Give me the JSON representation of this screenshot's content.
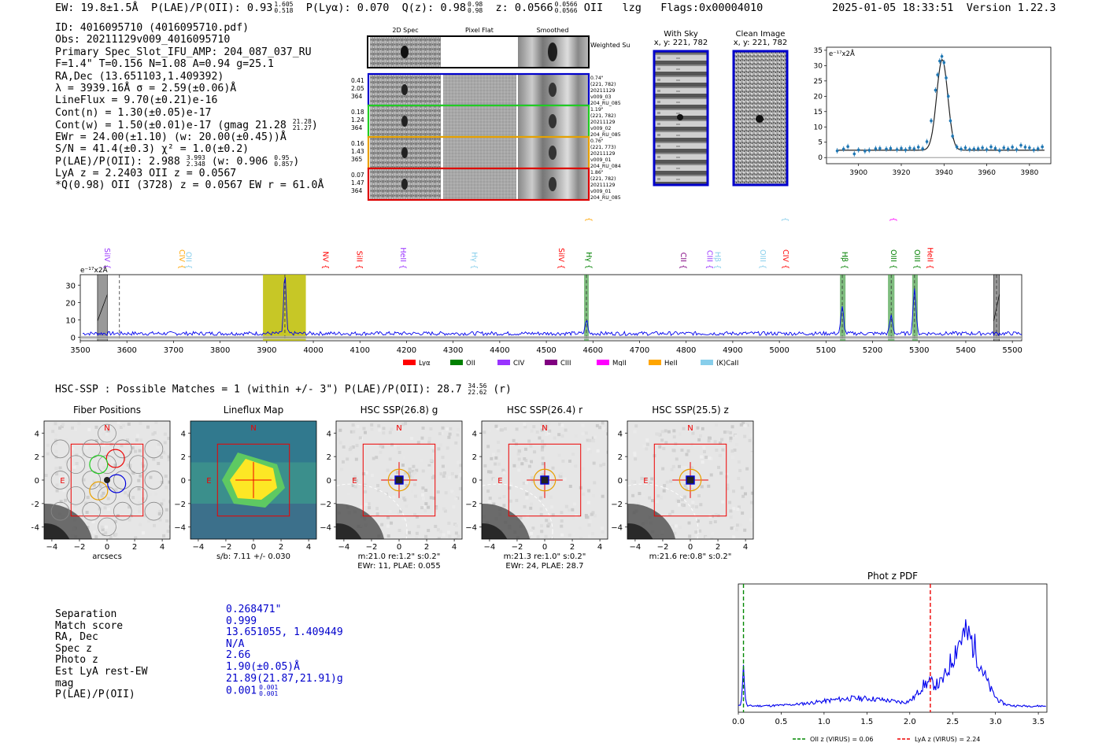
{
  "header": {
    "ew": "EW: 19.8±1.5Å",
    "plae": "P(LAE)/P(OII): 0.93",
    "plae_hi": "1.605",
    "plae_lo": "0.518",
    "plya": "P(Lyα): 0.070",
    "qz": "Q(z): 0.98",
    "qz_hi": "0.98",
    "qz_lo": "0.98",
    "z": "z: 0.0566",
    "z_hi": "0.0566",
    "z_lo": "0.0566",
    "line": "OII",
    "lzg": "lzg",
    "flags": "Flags:0x00004010",
    "datetime": "2025-01-05 18:33:51",
    "version": "Version 1.22.3"
  },
  "info": {
    "id": "ID: 4016095710 (4016095710.pdf)",
    "obs": "Obs: 20211129v009_4016095710",
    "primary": "Primary Spec_Slot_IFU_AMP: 204_087_037_RU",
    "params": "F=1.4\"  T=0.156  N=1.08  A=0.94  g=25.1",
    "radec": "RA,Dec (13.651103,1.409392)",
    "lambda": "λ = 3939.16Å  σ = 2.59(±0.06)Å",
    "lineflux": "LineFlux = 9.70(±0.21)e-16",
    "contn": "Cont(n) = 1.30(±0.05)e-17",
    "contw": "Cont(w) = 1.50(±0.01)e-17 (gmag 21.28",
    "contw_hi": "21.28",
    "contw_lo": "21.27",
    "contw_end": ")",
    "ewr": "EWr = 24.00(±1.10) (w: 20.00(±0.45))Å",
    "sn": "S/N = 41.4(±0.3)  χ² = 1.0(±0.2)",
    "plae": "P(LAE)/P(OII): 2.988",
    "plae_hi": "3.993",
    "plae_lo": "2.348",
    "plae_w": "(w: 0.906",
    "plae_w_hi": "0.95",
    "plae_w_lo": "0.857",
    "plae_end": ")",
    "lyaz": "LyA z = 2.2403   OII z = 0.0567",
    "qline": "*Q(0.98) OII (3728) z = 0.0567  EW r = 61.0Å"
  },
  "cutouts": {
    "col_2d": "2D Spec",
    "col_flat": "Pixel Flat",
    "col_smooth": "Smoothed",
    "weighted": "Weighted Sum",
    "rows": [
      {
        "w1": "0.41",
        "w2": "2.05",
        "w3": "364",
        "d1": "0.74\"",
        "d2": "(221, 782)",
        "d3": "20211129",
        "d4": "v009_03",
        "d5": "204_RU_085",
        "color": "#0000cc"
      },
      {
        "w1": "0.18",
        "w2": "1.24",
        "w3": "364",
        "d1": "1.19\"",
        "d2": "(221, 782)",
        "d3": "20211129",
        "d4": "v009_02",
        "d5": "204_RU_085",
        "color": "#22cc22"
      },
      {
        "w1": "0.16",
        "w2": "1.43",
        "w3": "365",
        "d1": "0.76\"",
        "d2": "(221, 773)",
        "d3": "20211129",
        "d4": "v009_01",
        "d5": "204_RU_084",
        "color": "#e8a000"
      },
      {
        "w1": "0.07",
        "w2": "1.47",
        "w3": "364",
        "d1": "1.86\"",
        "d2": "(221, 782)",
        "d3": "20211129",
        "d4": "v009_01",
        "d5": "204_RU_085",
        "color": "#dd0000"
      }
    ],
    "with_sky": "With Sky",
    "with_sky_xy": "x, y: 221, 782",
    "clean": "Clean Image",
    "clean_xy": "x, y: 221, 782"
  },
  "hsc": {
    "line": "HSC-SSP : Possible Matches = 1 (within +/- 3\")  P(LAE)/P(OII): 28.7",
    "hi": "34.56",
    "lo": "22.62",
    "band": "(r)"
  },
  "panels": [
    {
      "title": "Fiber Positions",
      "c1": "arcsecs",
      "c2": ""
    },
    {
      "title": "Lineflux Map",
      "c1": "s/b: 7.11 +/- 0.030",
      "c2": ""
    },
    {
      "title": "HSC SSP(26.8) g",
      "c1": "m:21.0  re:1.2\"  s:0.2\"",
      "c2": "EWr: 11, PLAE: 0.055"
    },
    {
      "title": "HSC SSP(26.4) r",
      "c1": "m:21.3  re:1.0\"  s:0.2\"",
      "c2": "EWr: 24, PLAE: 28.7"
    },
    {
      "title": "HSC SSP(25.5) z",
      "c1": "m:21.6  re:0.8\"  s:0.2\"",
      "c2": ""
    }
  ],
  "panel_axes": {
    "xticks": [
      "−4",
      "−2",
      "0",
      "2",
      "4"
    ],
    "yticks": [
      "4",
      "2",
      "0",
      "−2",
      "−4"
    ],
    "north": "N",
    "east": "E"
  },
  "match": {
    "labels": [
      "Separation",
      "Match score",
      "RA, Dec",
      "Spec z",
      "Photo z",
      "Est LyA rest-EW",
      "mag",
      "P(LAE)/P(OII)"
    ],
    "values": [
      "0.268471\"",
      "0.999",
      "13.651055, 1.409449",
      "N/A",
      "2.66",
      "1.90(±0.05)Å",
      "21.89(21.87,21.91)g",
      "0.001"
    ],
    "plae_hi": "0.001",
    "plae_lo": "0.001"
  },
  "colors": {
    "blue": "#0000ff",
    "lya": "#ff0000",
    "oii": "#008000",
    "civ": "#9933ff",
    "ciii": "#800080",
    "mgii": "#ff00ff",
    "heii": "#ffa500",
    "kcall": "#87ceeb"
  },
  "chart_data": [
    {
      "type": "line",
      "name": "zoom-spectrum",
      "title": "",
      "ylabel_unit": "e⁻¹⁷x2Å",
      "xlim": [
        3885,
        3990
      ],
      "ylim": [
        -2,
        36
      ],
      "xticks": [
        3900,
        3920,
        3940,
        3960,
        3980
      ],
      "yticks": [
        0,
        5,
        10,
        15,
        20,
        25,
        30,
        35
      ],
      "line_center": 3939.16,
      "sigma": 2.59,
      "continuum": 2.4,
      "amplitude": 29.6,
      "points_x": [
        3890,
        3893,
        3895,
        3898,
        3900,
        3903,
        3905,
        3908,
        3910,
        3913,
        3915,
        3918,
        3920,
        3922,
        3924,
        3926,
        3928,
        3930,
        3932,
        3934,
        3936,
        3937,
        3938,
        3939,
        3940,
        3941,
        3942,
        3943,
        3944,
        3946,
        3948,
        3950,
        3952,
        3954,
        3956,
        3958,
        3960,
        3962,
        3964,
        3966,
        3968,
        3970,
        3972,
        3974,
        3976,
        3978,
        3980,
        3982,
        3984,
        3986
      ],
      "points_y": [
        2.2,
        2.8,
        3.6,
        1.2,
        2.5,
        2.1,
        2.4,
        2.9,
        3.0,
        2.8,
        3.0,
        2.6,
        3.0,
        2.5,
        3.1,
        2.9,
        3.4,
        2.9,
        5.2,
        12.0,
        22.0,
        27.0,
        31.5,
        33.0,
        31.0,
        26.0,
        20.0,
        12.0,
        7.0,
        3.5,
        2.8,
        3.2,
        2.6,
        2.8,
        2.9,
        3.2,
        2.6,
        3.5,
        3.0,
        2.3,
        3.2,
        2.8,
        3.4,
        2.6,
        4.0,
        3.4,
        3.2,
        2.5,
        2.9,
        3.5
      ]
    },
    {
      "type": "line",
      "name": "full-spectrum",
      "ylabel_unit": "e⁻¹⁷x2Å",
      "xlim": [
        3500,
        5520
      ],
      "ylim": [
        -2,
        36
      ],
      "xticks": [
        3500,
        3600,
        3700,
        3800,
        3900,
        4000,
        4100,
        4200,
        4300,
        4400,
        4500,
        4600,
        4700,
        4800,
        4900,
        5000,
        5100,
        5200,
        5300,
        5400,
        5500
      ],
      "yticks": [
        0,
        10,
        20,
        30
      ],
      "peaks": [
        {
          "x": 3939,
          "h": 34,
          "w": 2.6
        },
        {
          "x": 4586,
          "h": 8,
          "w": 2.5
        },
        {
          "x": 5135,
          "h": 15,
          "w": 3.0
        },
        {
          "x": 5240,
          "h": 10,
          "w": 3.0
        },
        {
          "x": 5290,
          "h": 26,
          "w": 3.0
        }
      ],
      "highlight_band": [
        3892,
        3984
      ],
      "masked_bands": [
        [
          3537,
          3558
        ],
        [
          5460,
          5472
        ]
      ],
      "line_bands": [
        [
          4581,
          4591
        ],
        [
          5130,
          5142
        ],
        [
          5233,
          5247
        ],
        [
          5285,
          5297
        ]
      ],
      "dashed_x": [
        3584,
        3939,
        4586,
        5135,
        5240,
        5290,
        5466
      ],
      "line_labels": [
        {
          "x": 3552,
          "label": "SiIV",
          "color": "#9933ff",
          "row": 2
        },
        {
          "x": 3713,
          "label": "CIV",
          "color": "#ffa500",
          "row": 2
        },
        {
          "x": 3727,
          "label": "OII",
          "color": "#87ceeb",
          "row": 2
        },
        {
          "x": 4021,
          "label": "NV",
          "color": "#ff0000",
          "row": 2
        },
        {
          "x": 4094,
          "label": "SiII",
          "color": "#ff0000",
          "row": 2
        },
        {
          "x": 4187,
          "label": "HeII",
          "color": "#9933ff",
          "row": 2
        },
        {
          "x": 4340,
          "label": "Hγ",
          "color": "#87ceeb",
          "row": 2
        },
        {
          "x": 4527,
          "label": "SiIV",
          "color": "#ff0000",
          "row": 2
        },
        {
          "x": 4586,
          "label": "CIII",
          "color": "#ffa500",
          "row": 0
        },
        {
          "x": 4586,
          "label": "Hγ",
          "color": "#008000",
          "row": 2
        },
        {
          "x": 4789,
          "label": "CII",
          "color": "#800080",
          "row": 2
        },
        {
          "x": 4845,
          "label": "CIII",
          "color": "#9933ff",
          "row": 2
        },
        {
          "x": 4862,
          "label": "Hβ",
          "color": "#87ceeb",
          "row": 2
        },
        {
          "x": 4959,
          "label": "OIII",
          "color": "#87ceeb",
          "row": 2
        },
        {
          "x": 5007,
          "label": "OIII",
          "color": "#87ceeb",
          "row": 0
        },
        {
          "x": 5008,
          "label": "CIV",
          "color": "#ff0000",
          "row": 2
        },
        {
          "x": 5135,
          "label": "Hβ",
          "color": "#008000",
          "row": 2
        },
        {
          "x": 5240,
          "label": "MgII",
          "color": "#ff00ff",
          "row": 1
        },
        {
          "x": 5240,
          "label": "OIII",
          "color": "#008000",
          "row": 2
        },
        {
          "x": 5290,
          "label": "OIII",
          "color": "#008000",
          "row": 2
        },
        {
          "x": 5318,
          "label": "HeII",
          "color": "#ff0000",
          "row": 2
        }
      ],
      "legend": [
        {
          "label": "Lyα",
          "color": "#ff0000"
        },
        {
          "label": "OII",
          "color": "#008000"
        },
        {
          "label": "CIV",
          "color": "#9933ff"
        },
        {
          "label": "CIII",
          "color": "#800080"
        },
        {
          "label": "MgII",
          "color": "#ff00ff"
        },
        {
          "label": "HeII",
          "color": "#ffa500"
        },
        {
          "label": "(K)CaII",
          "color": "#87ceeb"
        }
      ]
    },
    {
      "type": "line",
      "name": "photz-pdf",
      "title": "Phot z PDF",
      "xlim": [
        0.0,
        3.6
      ],
      "xticks": [
        0.0,
        0.5,
        1.0,
        1.5,
        2.0,
        2.5,
        3.0,
        3.5
      ],
      "oii_z": 0.06,
      "lya_z": 2.24,
      "legend": [
        "OII z (VIRUS) = 0.06",
        "LyA z (VIRUS) = 2.24"
      ]
    }
  ]
}
